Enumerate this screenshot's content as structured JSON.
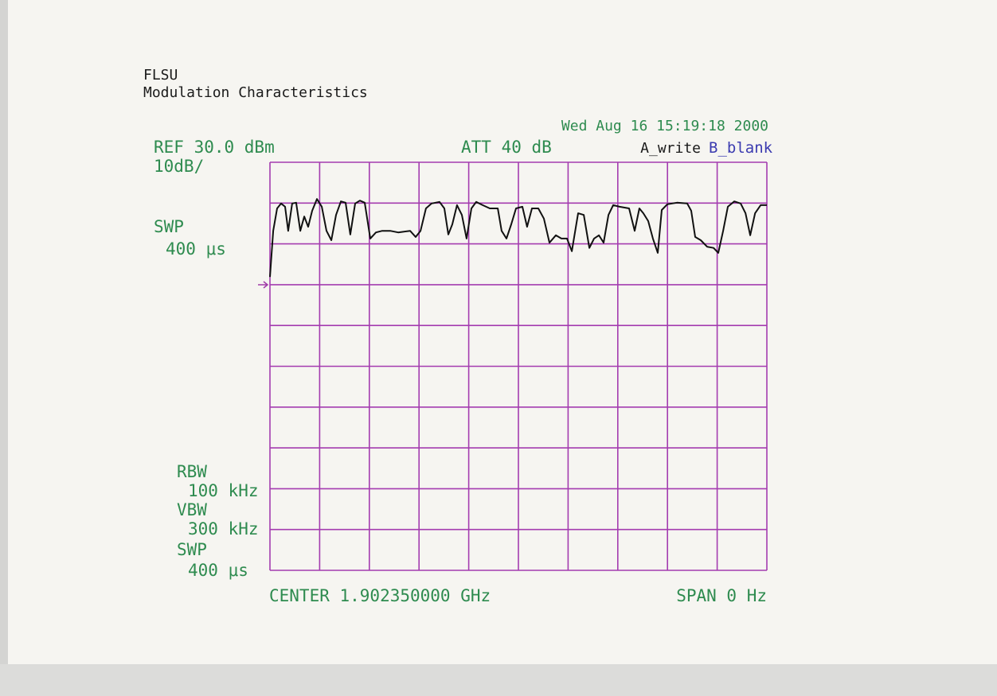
{
  "chart_data": {
    "type": "line",
    "title": "FLSU",
    "subtitle": "Modulation Characteristics",
    "annotations": [
      "Wed Aug 16 15:19:18 2000",
      "REF 30.0 dBm",
      "10dB/",
      "ATT 40 dB",
      "B_blank",
      "SWP",
      "400 μs",
      "RBW",
      "100 kHz",
      "VBW",
      "300 kHz",
      "SWP",
      "400 μs",
      "CENTER 1.902350000 GHz",
      "SPAN 0 Hz"
    ],
    "xlim": [
      0,
      400
    ],
    "xticks": [
      0,
      40,
      80,
      120,
      160,
      200,
      240,
      280,
      320,
      360,
      400
    ],
    "ylim": [
      -70,
      30
    ],
    "yticks": [
      -70,
      -60,
      -50,
      -40,
      -30,
      -20,
      -10,
      0,
      10,
      20,
      30
    ],
    "grid": true,
    "x": [
      0,
      2.6,
      5.8,
      9,
      12.2,
      14.7,
      17.9,
      21.1,
      24.4,
      27.6,
      30.8,
      34,
      37.8,
      41.7,
      45.5,
      49.4,
      53.2,
      57.1,
      60.9,
      64.7,
      68.6,
      72.4,
      76.3,
      80.8,
      85.3,
      90.4,
      96.8,
      103.2,
      112.8,
      117.3,
      121.2,
      125.6,
      130.1,
      136.5,
      140.4,
      143.6,
      146.8,
      150.6,
      154.5,
      158.3,
      162.2,
      166,
      171.2,
      177,
      183.4,
      186.5,
      190.4,
      194.2,
      198.1,
      203.2,
      207,
      210.9,
      216,
      220.5,
      225,
      230.1,
      234.6,
      239.1,
      243,
      248.1,
      252.6,
      257.1,
      260.9,
      264.8,
      268.6,
      272.5,
      276.3,
      281.4,
      289.1,
      293.6,
      297.4,
      300.6,
      304.5,
      308.3,
      312.2,
      315.4,
      319.9,
      327.6,
      335.9,
      339.1,
      342.3,
      346.8,
      351.9,
      357.1,
      360.9,
      364.8,
      368.6,
      373.8,
      378.9,
      382.8,
      386.6,
      390.5,
      395,
      400
    ],
    "series": [
      {
        "name": "A_write",
        "color": "#111111",
        "values": [
          1.9,
          13.2,
          18.7,
          19.9,
          19.1,
          13.2,
          19.9,
          20.1,
          13.2,
          16.7,
          14.2,
          18.1,
          21,
          19.1,
          13.2,
          10.9,
          17.1,
          20.4,
          20.1,
          12.3,
          19.9,
          20.6,
          20.1,
          11.3,
          12.8,
          13.2,
          13.2,
          12.8,
          13.2,
          11.7,
          13.2,
          18.7,
          19.9,
          20.3,
          18.7,
          12.3,
          14.8,
          19.5,
          17.1,
          11.3,
          18.7,
          20.3,
          19.5,
          18.7,
          18.7,
          13.2,
          11.3,
          14.8,
          18.7,
          19.1,
          14.2,
          18.7,
          18.7,
          16.2,
          10.3,
          12.1,
          11.3,
          11.3,
          8.2,
          17.5,
          17.1,
          9,
          11.3,
          12.1,
          10.3,
          17.1,
          19.5,
          19.1,
          18.7,
          13.2,
          18.7,
          17.5,
          15.6,
          11.3,
          7.8,
          18.3,
          19.7,
          20.1,
          19.9,
          18.1,
          11.7,
          10.9,
          9.3,
          9,
          7.8,
          13.2,
          19.1,
          20.4,
          19.9,
          17.5,
          12.1,
          17.5,
          19.5,
          19.5
        ]
      }
    ]
  }
}
